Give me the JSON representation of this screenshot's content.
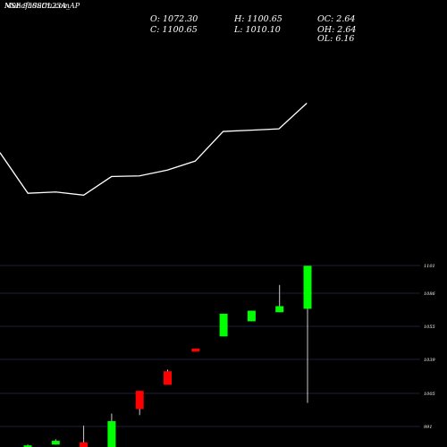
{
  "header": {
    "title_overlap": [
      "MunafaSutra.com",
      "NSE 950SCL23A_AP"
    ],
    "o_label": "O: 1072.30",
    "h_label": "H: 1100.65",
    "oc_label": "OC: 2.64",
    "c_label": "C: 1100.65",
    "l_label": "L: 1010.10",
    "oh_label": "OH: 2.64",
    "ol_label": "OL: 6.16"
  },
  "chart_data": {
    "type": "candlestick",
    "price_axis": {
      "ticks": [
        "1101",
        "1086",
        "1055",
        "1039",
        "1005",
        "991"
      ]
    },
    "line_series": {
      "values": [
        0.85,
        0.22,
        0.24,
        0.19,
        0.48,
        0.49,
        0.58,
        0.72,
        1.18,
        1.2,
        1.22,
        1.62
      ]
    },
    "candles": [
      {
        "open": 982,
        "close": 981,
        "high": 982.5,
        "low": 980.5,
        "color": "green"
      },
      {
        "open": 982.5,
        "close": 985,
        "high": 986,
        "low": 982.5,
        "color": "green"
      },
      {
        "open": 984,
        "close": 980,
        "high": 995,
        "low": 979,
        "color": "red"
      },
      {
        "open": 977,
        "close": 998,
        "high": 1003,
        "low": 976,
        "color": "green"
      },
      {
        "open": 1018,
        "close": 1006,
        "high": 1018,
        "low": 1002,
        "color": "red"
      },
      {
        "open": 1031,
        "close": 1022,
        "high": 1032,
        "low": 1022,
        "color": "red"
      },
      {
        "open": 1046,
        "close": 1044,
        "high": 1046,
        "low": 1044,
        "color": "red"
      },
      {
        "open": 1054,
        "close": 1069,
        "high": 1069,
        "low": 1054,
        "color": "green"
      },
      {
        "open": 1064,
        "close": 1071,
        "high": 1071,
        "low": 1064,
        "color": "green"
      },
      {
        "open": 1070,
        "close": 1074,
        "high": 1088,
        "low": 1070,
        "color": "green"
      },
      {
        "open": 1072.3,
        "close": 1100.65,
        "high": 1100.65,
        "low": 1010.1,
        "color": "green"
      }
    ]
  }
}
